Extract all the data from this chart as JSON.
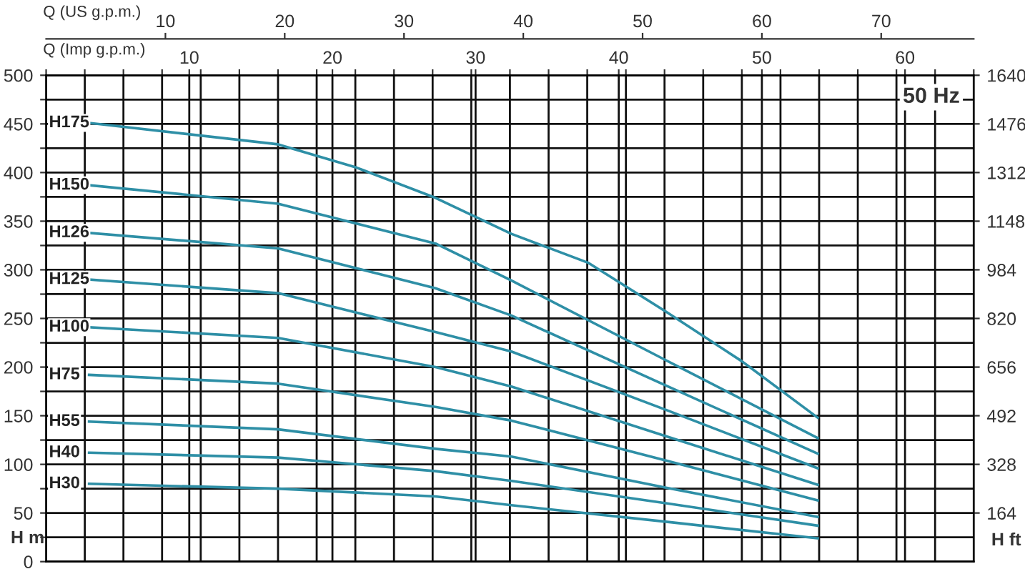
{
  "chart_data": {
    "type": "line",
    "xlabel": "Q (Imp g.p.m.)",
    "x2label": "Q (US g.p.m.)",
    "ylabel": "H m",
    "y2label": "H ft",
    "annotations": [
      "50 Hz"
    ],
    "xlim": [
      0,
      64.8
    ],
    "xticks": [
      {
        "value": 0,
        "label": null
      },
      {
        "value": 2.7,
        "label": null
      },
      {
        "value": 5.4,
        "label": null
      },
      {
        "value": 8.1,
        "label": null
      },
      10,
      {
        "value": 10.8,
        "label": null
      },
      {
        "value": 13.5,
        "label": null
      },
      {
        "value": 16.2,
        "label": null
      },
      {
        "value": 18.9,
        "label": null
      },
      20,
      {
        "value": 21.6,
        "label": null
      },
      {
        "value": 24.3,
        "label": null
      },
      {
        "value": 27,
        "label": null
      },
      {
        "value": 29.7,
        "label": null
      },
      30,
      {
        "value": 32.4,
        "label": null
      },
      {
        "value": 35.1,
        "label": null
      },
      {
        "value": 37.8,
        "label": null
      },
      40,
      {
        "value": 40.5,
        "label": null
      },
      {
        "value": 43.2,
        "label": null
      },
      {
        "value": 45.9,
        "label": null
      },
      {
        "value": 48.6,
        "label": null
      },
      50,
      {
        "value": 51.3,
        "label": null
      },
      {
        "value": 54,
        "label": null
      },
      {
        "value": 56.7,
        "label": null
      },
      {
        "value": 59.4,
        "label": null
      },
      60,
      {
        "value": 62.1,
        "label": null
      },
      {
        "value": 64.8,
        "label": null
      }
    ],
    "x2lim": [
      0,
      77.76
    ],
    "x2ticks": [
      10,
      20,
      30,
      40,
      50,
      60,
      70
    ],
    "ylim": [
      0,
      500
    ],
    "yticks": [
      0,
      {
        "value": 25,
        "label": null
      },
      50,
      {
        "value": 75,
        "label": null
      },
      100,
      {
        "value": 125,
        "label": null
      },
      150,
      {
        "value": 175,
        "label": null
      },
      200,
      {
        "value": 225,
        "label": null
      },
      250,
      {
        "value": 275,
        "label": null
      },
      300,
      {
        "value": 325,
        "label": null
      },
      350,
      {
        "value": 375,
        "label": null
      },
      400,
      {
        "value": 425,
        "label": null
      },
      450,
      {
        "value": 475,
        "label": null
      },
      500
    ],
    "y2lim": [
      0,
      1640
    ],
    "y2ticks": [
      164,
      328,
      492,
      656,
      820,
      984,
      1148,
      1312,
      1476,
      1640
    ],
    "grid": true,
    "legend": false,
    "marker": "none",
    "line_style": "solid",
    "series": [
      {
        "name": "H175",
        "color": "#2e8fa6",
        "x": [
          3.0,
          16.2,
          21.7,
          27.2,
          32.5,
          37.9,
          43.3,
          48.6,
          53.9
        ],
        "values": [
          451,
          429,
          405,
          374,
          337,
          307,
          257,
          206,
          148
        ]
      },
      {
        "name": "H150",
        "color": "#2e8fa6",
        "x": [
          3.0,
          16.2,
          27.2,
          32.5,
          43.3,
          53.9
        ],
        "values": [
          387,
          368,
          327,
          289,
          207,
          127
        ]
      },
      {
        "name": "H126",
        "color": "#2e8fa6",
        "x": [
          3.0,
          16.2,
          27.2,
          32.5,
          43.3,
          53.9
        ],
        "values": [
          338,
          322,
          281,
          253,
          181,
          111
        ]
      },
      {
        "name": "H125",
        "color": "#2e8fa6",
        "x": [
          3.0,
          16.2,
          27.2,
          32.5,
          43.3,
          53.9
        ],
        "values": [
          290,
          276,
          236,
          216,
          156,
          96
        ]
      },
      {
        "name": "H100",
        "color": "#2e8fa6",
        "x": [
          3.0,
          16.2,
          27.2,
          32.5,
          43.3,
          53.9
        ],
        "values": [
          241,
          230,
          200,
          180,
          129,
          79
        ]
      },
      {
        "name": "H75",
        "color": "#2e8fa6",
        "x": [
          3.0,
          16.2,
          27.2,
          32.5,
          43.3,
          53.9
        ],
        "values": [
          192,
          183,
          159,
          145,
          104,
          63
        ]
      },
      {
        "name": "H55",
        "color": "#2e8fa6",
        "x": [
          3.0,
          16.2,
          27.2,
          32.5,
          43.3,
          53.9
        ],
        "values": [
          144,
          136,
          116,
          108,
          76,
          46
        ]
      },
      {
        "name": "H40",
        "color": "#2e8fa6",
        "x": [
          3.0,
          16.2,
          27.2,
          32.5,
          43.3,
          53.9
        ],
        "values": [
          112,
          107,
          93,
          83,
          60,
          37
        ]
      },
      {
        "name": "H30",
        "color": "#2e8fa6",
        "x": [
          3.0,
          16.2,
          27.2,
          32.5,
          43.3,
          53.9
        ],
        "values": [
          80,
          75,
          67,
          58,
          41,
          24
        ]
      }
    ]
  }
}
